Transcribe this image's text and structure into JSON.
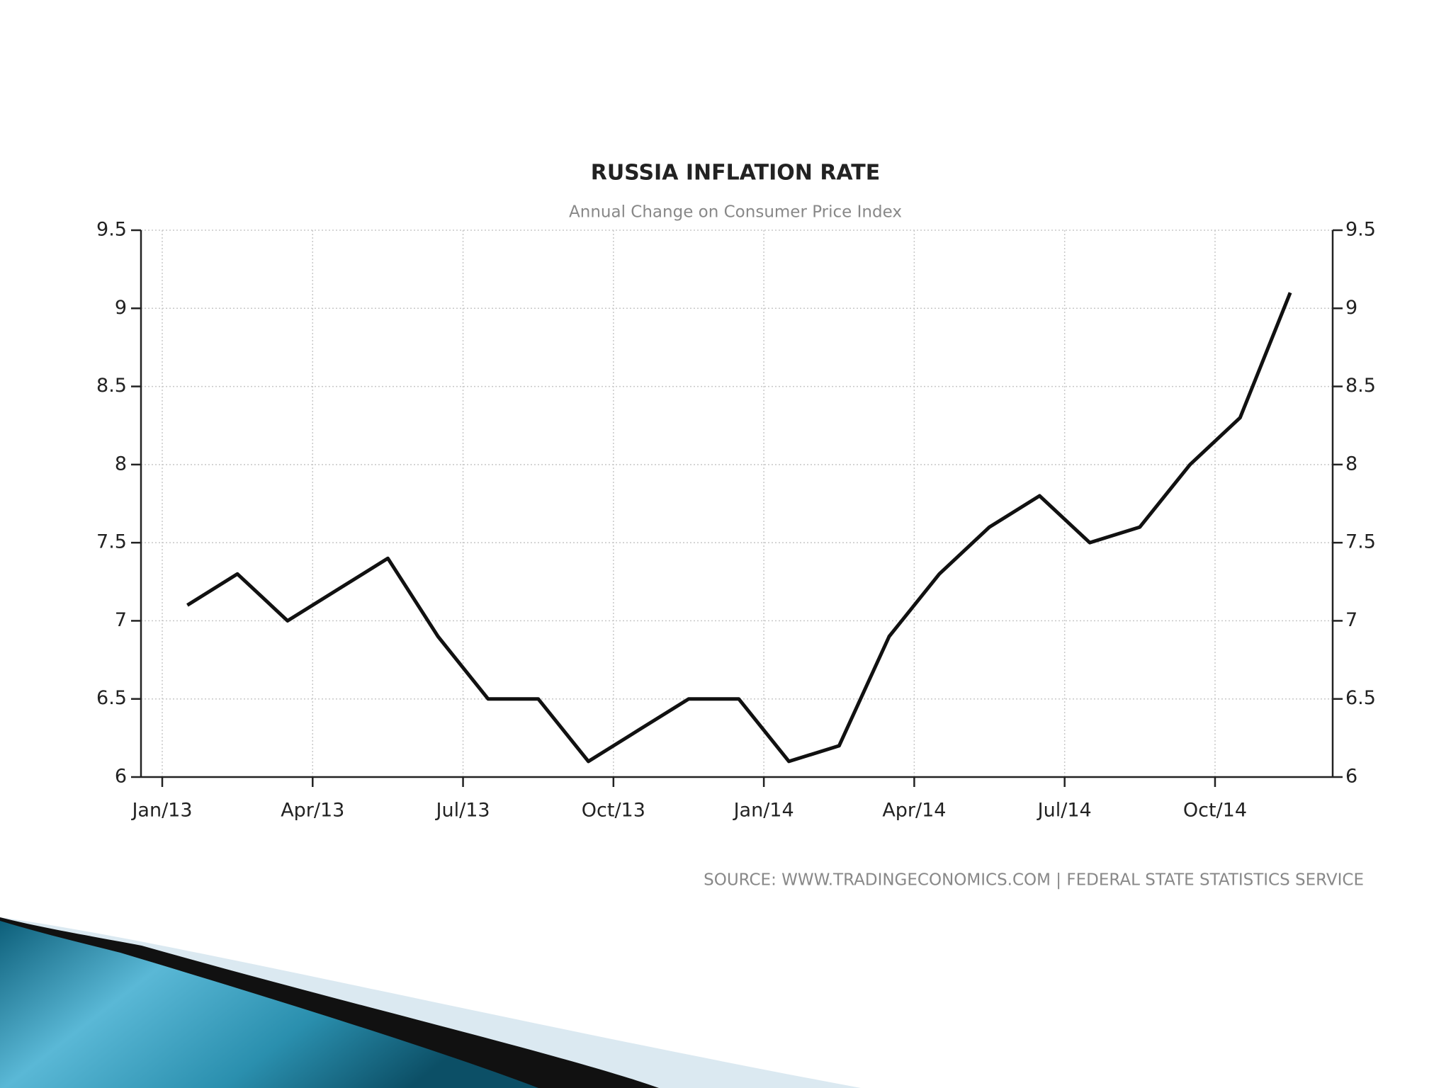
{
  "chart_data": {
    "type": "line",
    "title": "RUSSIA INFLATION RATE",
    "subtitle": "Annual Change on Consumer Price Index",
    "source": "SOURCE:  WWW.TRADINGECONOMICS.COM  |  FEDERAL  STATE  STATISTICS  SERVICE",
    "categories": [
      "Jan/13",
      null,
      null,
      "Apr/13",
      null,
      null,
      "Jul/13",
      null,
      null,
      "Oct/13",
      null,
      null,
      "Jan/14",
      null,
      null,
      "Apr/14",
      null,
      null,
      "Jul/14",
      null,
      null,
      "Oct/14",
      null
    ],
    "values": [
      7.1,
      7.3,
      7.0,
      7.2,
      7.4,
      6.9,
      6.5,
      6.5,
      6.1,
      6.3,
      6.5,
      6.5,
      6.1,
      6.2,
      6.9,
      7.3,
      7.6,
      7.8,
      7.5,
      7.6,
      8.0,
      8.3,
      9.1
    ],
    "color": "#111111",
    "ylim": [
      6,
      9.5
    ],
    "yticks": [
      6,
      6.5,
      7,
      7.5,
      8,
      8.5,
      9,
      9.5
    ],
    "grid": true,
    "right_axis": true
  }
}
